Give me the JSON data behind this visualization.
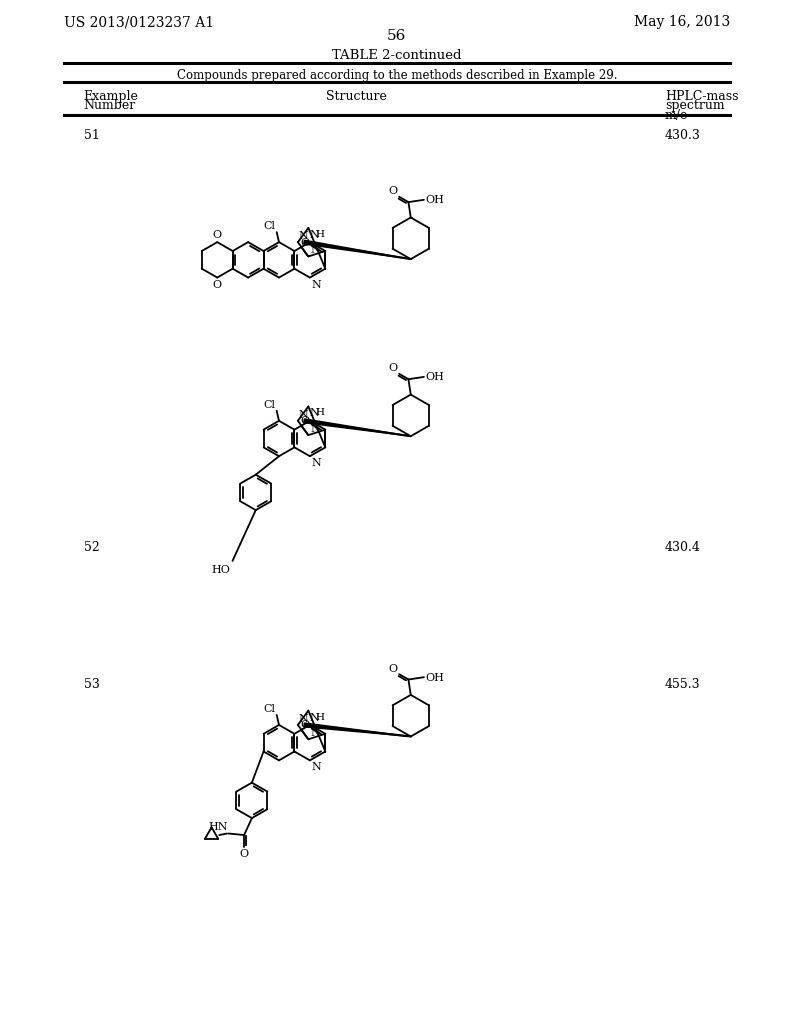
{
  "background_color": "#ffffff",
  "header_left": "US 2013/0123237 A1",
  "header_right": "May 16, 2013",
  "page_number": "56",
  "table_title": "TABLE 2-continued",
  "table_subtitle": "Compounds prepared according to the methods described in Example 29.",
  "col_header_example": "Example\nNumber",
  "col_header_structure": "Structure",
  "col_header_hplc": "HPLC-mass\nspectrum\nm/e",
  "rows": [
    {
      "example": "51",
      "mz": "430.3"
    },
    {
      "example": "52",
      "mz": "430.4"
    },
    {
      "example": "53",
      "mz": "455.3"
    }
  ]
}
